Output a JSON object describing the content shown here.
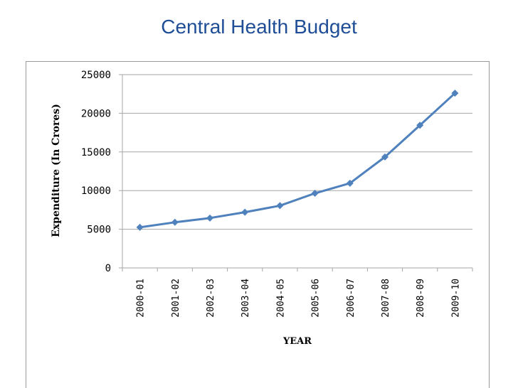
{
  "chart_data": {
    "type": "line",
    "title": "Central Health Budget",
    "xlabel": "YEAR",
    "ylabel": "Expenditure (In Crores)",
    "categories": [
      "2000-01",
      "2001-02",
      "2002-03",
      "2003-04",
      "2004-05",
      "2005-06",
      "2006-07",
      "2007-08",
      "2008-09",
      "2009-10"
    ],
    "series": [
      {
        "name": "Expenditure",
        "values": [
          5250,
          5900,
          6450,
          7200,
          8050,
          9650,
          10950,
          14350,
          18450,
          22600
        ]
      }
    ],
    "ylim": [
      0,
      25000
    ],
    "yticks": [
      0,
      5000,
      10000,
      15000,
      20000,
      25000
    ],
    "grid": true,
    "line_color": "#4f81bd"
  }
}
